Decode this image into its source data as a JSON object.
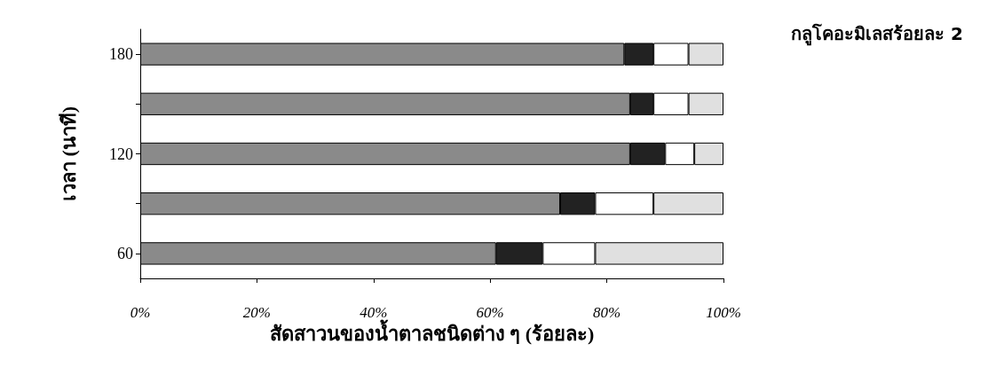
{
  "chart_data": {
    "type": "bar",
    "orientation": "horizontal",
    "stacked": true,
    "xlabel": "สัดสาวนของน้ำตาลชนิดต่าง ๆ (ร้อยละ)",
    "ylabel": "เวลา (นาที)",
    "annotations": [
      "กลูโคอะมิเลสร้อยละ 2"
    ],
    "categories": [
      "180",
      null,
      "120",
      null,
      "60"
    ],
    "series": [
      {
        "color": "#8a8a8a",
        "values": [
          83,
          84,
          84,
          72,
          61
        ]
      },
      {
        "color": "#222222",
        "values": [
          5,
          4,
          6,
          6,
          8
        ]
      },
      {
        "color": "#ffffff",
        "values": [
          6,
          6,
          5,
          10,
          9
        ]
      },
      {
        "color": "#e0e0e0",
        "values": [
          6,
          6,
          5,
          12,
          22
        ]
      }
    ],
    "xlim": [
      0,
      100
    ],
    "xticks": [
      {
        "value": 0,
        "label": "0%"
      },
      {
        "value": 20,
        "label": "20%"
      },
      {
        "value": 40,
        "label": "40%"
      },
      {
        "value": 60,
        "label": "60%"
      },
      {
        "value": 80,
        "label": "80%"
      },
      {
        "value": 100,
        "label": "100%"
      }
    ],
    "grid": false
  }
}
